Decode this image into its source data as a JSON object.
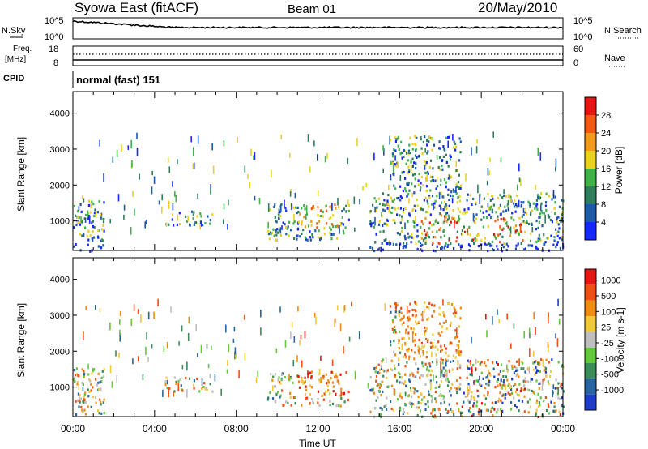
{
  "header": {
    "station": "Syowa East (fitACF)",
    "beam": "Beam 01",
    "date": "20/May/2010"
  },
  "nsky_panel": {
    "left_label": "N.Sky",
    "right_label": "N.Search",
    "ticks_left": [
      "10^5",
      "10^0"
    ],
    "ticks_right": [
      "10^5",
      "10^0"
    ]
  },
  "freq_panel": {
    "left_label_1": "Freq.",
    "left_label_2": "[MHz]",
    "right_label": "Nave",
    "ticks_left": [
      "18",
      "8"
    ],
    "ticks_right": [
      "60",
      "0"
    ]
  },
  "cpid": {
    "label": "CPID",
    "value": "normal (fast) 151"
  },
  "chart_data": [
    {
      "type": "heatmap",
      "quantity": "Power",
      "ylabel": "Slant Range [km]",
      "xlabel": "Time UT",
      "x_range_hours": [
        0,
        24
      ],
      "ylim": [
        180,
        4600
      ],
      "y_ticks": [
        "1000",
        "2000",
        "3000",
        "4000"
      ],
      "colorbar": {
        "label": "Power [dB]",
        "tick_labels": [
          "4",
          "8",
          "12",
          "16",
          "20",
          "24",
          "28"
        ],
        "colors": [
          "#1428ff",
          "#1e5aa8",
          "#2f7d5a",
          "#3fb24a",
          "#e8d21e",
          "#f09a1e",
          "#f05a14",
          "#e81414"
        ]
      },
      "echo_regions": [
        {
          "t_start": 0.0,
          "t_end": 1.5,
          "range_low": 180,
          "range_high": 1600
        },
        {
          "t_start": 4.5,
          "t_end": 6.8,
          "range_low": 900,
          "range_high": 1300
        },
        {
          "t_start": 9.5,
          "t_end": 13.5,
          "range_low": 500,
          "range_high": 1500
        },
        {
          "t_start": 14.5,
          "t_end": 24.0,
          "range_low": 200,
          "range_high": 1800
        },
        {
          "t_start": 15.5,
          "t_end": 19.0,
          "range_low": 1800,
          "range_high": 3400
        }
      ]
    },
    {
      "type": "heatmap",
      "quantity": "Velocity",
      "ylabel": "Slant Range [km]",
      "xlabel": "Time UT",
      "x_range_hours": [
        0,
        24
      ],
      "ylim": [
        180,
        4600
      ],
      "y_ticks": [
        "1000",
        "2000",
        "3000",
        "4000"
      ],
      "colorbar": {
        "label": "Velocity [m s-1]",
        "tick_labels": [
          "1000",
          "500",
          "100",
          "25",
          "-25",
          "-100",
          "-500",
          "-1000"
        ],
        "colors": [
          "#1e3cc8",
          "#2864a0",
          "#3c8c5a",
          "#64c83c",
          "#bebebe",
          "#f0c83c",
          "#f08c14",
          "#f05014",
          "#e81414"
        ]
      },
      "echo_regions": [
        {
          "t_start": 0.0,
          "t_end": 1.5,
          "range_low": 180,
          "range_high": 1600
        },
        {
          "t_start": 4.5,
          "t_end": 6.8,
          "range_low": 900,
          "range_high": 1300
        },
        {
          "t_start": 9.5,
          "t_end": 13.5,
          "range_low": 500,
          "range_high": 1500
        },
        {
          "t_start": 14.5,
          "t_end": 24.0,
          "range_low": 200,
          "range_high": 1800
        },
        {
          "t_start": 15.5,
          "t_end": 19.0,
          "range_low": 1800,
          "range_high": 3400
        }
      ]
    }
  ],
  "x_ticks": [
    "00:00",
    "04:00",
    "08:00",
    "12:00",
    "16:00",
    "20:00",
    "00:00"
  ],
  "xlabel": "Time UT"
}
